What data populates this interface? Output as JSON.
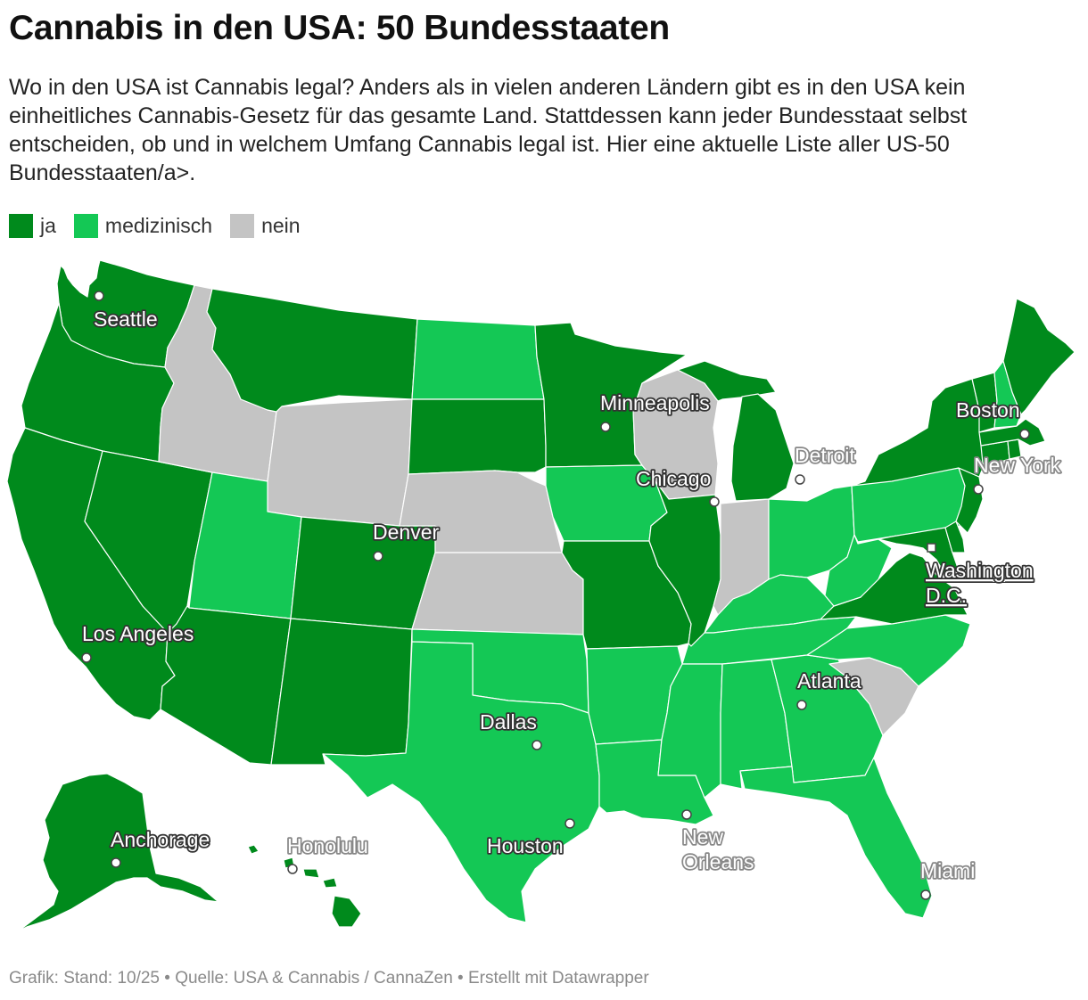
{
  "title": "Cannabis in den USA: 50 Bundesstaaten",
  "intro": "Wo in den USA ist Cannabis legal? Anders als in vielen anderen Ländern gibt es in den USA kein einheitliches Cannabis-Gesetz für das gesamte Land. Stattdessen kann jeder Bundesstaat selbst entscheiden, ob und in welchem Umfang Cannabis legal ist. Hier eine aktuelle Liste aller US-50 Bundesstaaten/a>.",
  "legend": [
    {
      "label": "ja",
      "color": "#008a1c"
    },
    {
      "label": "medizinisch",
      "color": "#14c855"
    },
    {
      "label": "nein",
      "color": "#c4c4c4"
    }
  ],
  "footer": "Grafik: Stand: 10/25 • Quelle: USA & Cannabis / CannaZen • Erstellt mit Datawrapper",
  "colors": {
    "ja": "#008a1c",
    "medizinisch": "#14c855",
    "nein": "#c4c4c4"
  },
  "states": [
    {
      "name": "Washington",
      "status": "ja"
    },
    {
      "name": "Oregon",
      "status": "ja"
    },
    {
      "name": "California",
      "status": "ja"
    },
    {
      "name": "Nevada",
      "status": "ja"
    },
    {
      "name": "Idaho",
      "status": "nein"
    },
    {
      "name": "Montana",
      "status": "ja"
    },
    {
      "name": "Wyoming",
      "status": "nein"
    },
    {
      "name": "Utah",
      "status": "medizinisch"
    },
    {
      "name": "Arizona",
      "status": "ja"
    },
    {
      "name": "Colorado",
      "status": "ja"
    },
    {
      "name": "New Mexico",
      "status": "ja"
    },
    {
      "name": "North Dakota",
      "status": "medizinisch"
    },
    {
      "name": "South Dakota",
      "status": "ja"
    },
    {
      "name": "Nebraska",
      "status": "nein"
    },
    {
      "name": "Kansas",
      "status": "nein"
    },
    {
      "name": "Oklahoma",
      "status": "medizinisch"
    },
    {
      "name": "Texas",
      "status": "medizinisch"
    },
    {
      "name": "Minnesota",
      "status": "ja"
    },
    {
      "name": "Iowa",
      "status": "medizinisch"
    },
    {
      "name": "Missouri",
      "status": "ja"
    },
    {
      "name": "Arkansas",
      "status": "medizinisch"
    },
    {
      "name": "Louisiana",
      "status": "medizinisch"
    },
    {
      "name": "Wisconsin",
      "status": "nein"
    },
    {
      "name": "Illinois",
      "status": "ja"
    },
    {
      "name": "Michigan",
      "status": "ja"
    },
    {
      "name": "Indiana",
      "status": "nein"
    },
    {
      "name": "Ohio",
      "status": "medizinisch"
    },
    {
      "name": "Kentucky",
      "status": "medizinisch"
    },
    {
      "name": "Tennessee",
      "status": "medizinisch"
    },
    {
      "name": "Mississippi",
      "status": "medizinisch"
    },
    {
      "name": "Alabama",
      "status": "medizinisch"
    },
    {
      "name": "Georgia",
      "status": "medizinisch"
    },
    {
      "name": "Florida",
      "status": "medizinisch"
    },
    {
      "name": "South Carolina",
      "status": "nein"
    },
    {
      "name": "North Carolina",
      "status": "medizinisch"
    },
    {
      "name": "Virginia",
      "status": "ja"
    },
    {
      "name": "West Virginia",
      "status": "medizinisch"
    },
    {
      "name": "Pennsylvania",
      "status": "medizinisch"
    },
    {
      "name": "New York",
      "status": "ja"
    },
    {
      "name": "New Jersey",
      "status": "ja"
    },
    {
      "name": "Delaware",
      "status": "ja"
    },
    {
      "name": "Maryland",
      "status": "ja"
    },
    {
      "name": "Connecticut",
      "status": "ja"
    },
    {
      "name": "Rhode Island",
      "status": "ja"
    },
    {
      "name": "Massachusetts",
      "status": "ja"
    },
    {
      "name": "Vermont",
      "status": "ja"
    },
    {
      "name": "New Hampshire",
      "status": "medizinisch"
    },
    {
      "name": "Maine",
      "status": "ja"
    },
    {
      "name": "Alaska",
      "status": "ja"
    },
    {
      "name": "Hawaii",
      "status": "ja"
    }
  ],
  "cities": {
    "seattle": "Seattle",
    "los_angeles": "Los Angeles",
    "denver": "Denver",
    "minneapolis": "Minneapolis",
    "chicago": "Chicago",
    "detroit": "Detroit",
    "boston": "Boston",
    "new_york": "New York",
    "washington_1": "Washington",
    "washington_2": "D.C.",
    "atlanta": "Atlanta",
    "dallas": "Dallas",
    "houston": "Houston",
    "new_orleans_1": "New",
    "new_orleans_2": "Orleans",
    "miami": "Miami",
    "anchorage": "Anchorage",
    "honolulu": "Honolulu"
  }
}
